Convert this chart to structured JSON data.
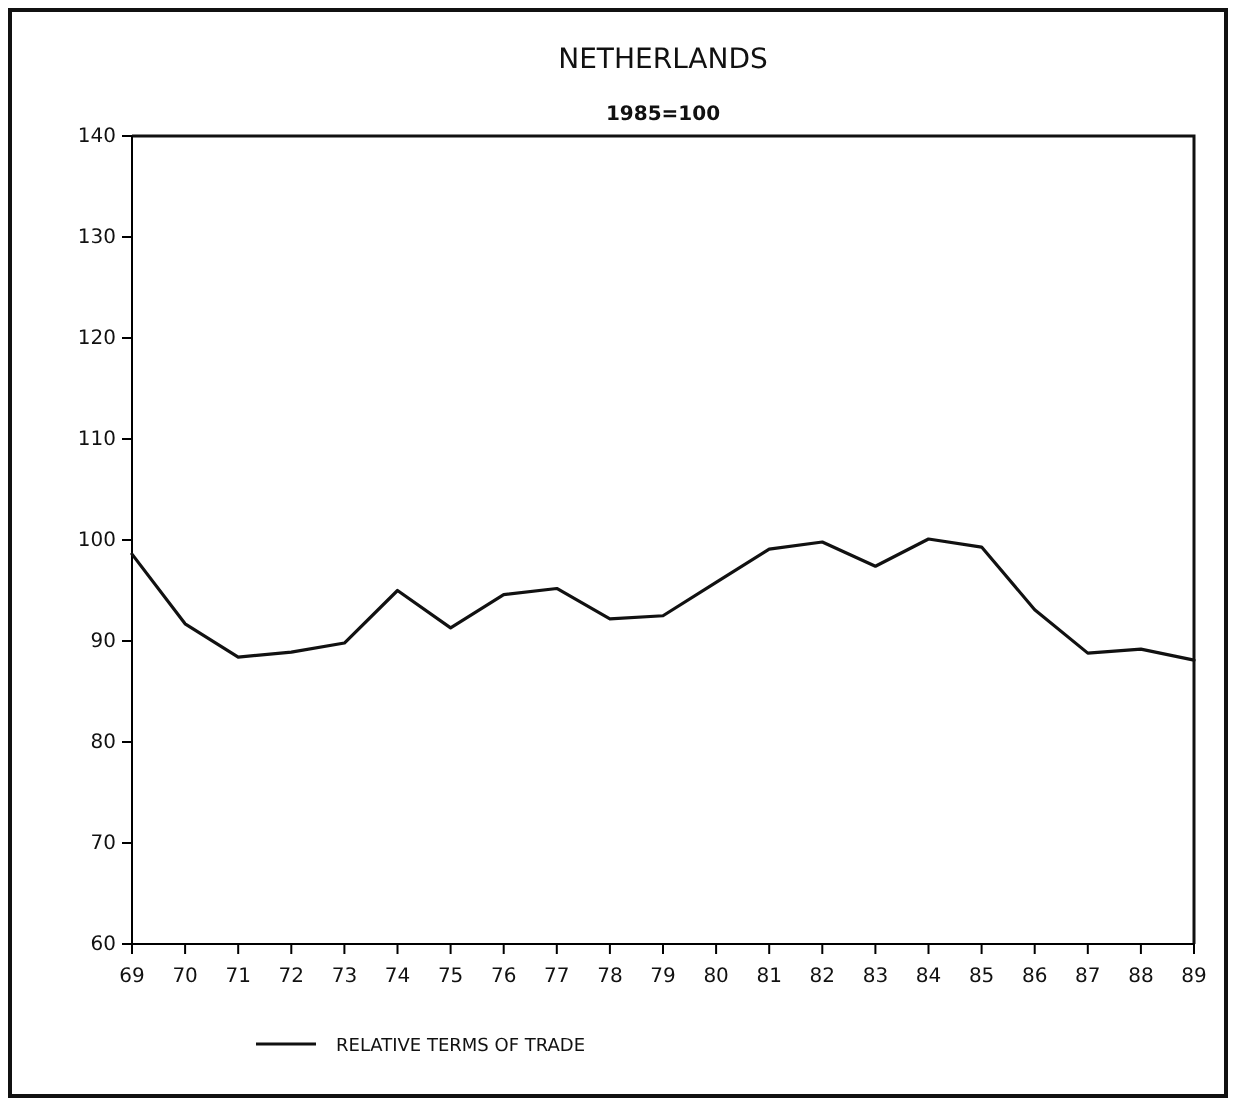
{
  "chart_data": {
    "type": "line",
    "title": "NETHERLANDS",
    "subtitle": "1985=100",
    "categories": [
      "69",
      "70",
      "71",
      "72",
      "73",
      "74",
      "75",
      "76",
      "77",
      "78",
      "79",
      "80",
      "81",
      "82",
      "83",
      "84",
      "85",
      "86",
      "87",
      "88",
      "89"
    ],
    "series": [
      {
        "name": "RELATIVE TERMS OF TRADE",
        "color": "#111111",
        "values": [
          98.6,
          91.7,
          88.4,
          88.9,
          89.8,
          95.0,
          91.3,
          94.6,
          95.2,
          92.2,
          92.5,
          95.8,
          99.1,
          99.8,
          97.4,
          100.1,
          99.3,
          93.1,
          88.8,
          89.2,
          88.1
        ]
      }
    ],
    "ylim": [
      60,
      140
    ],
    "yticks": [
      60,
      70,
      80,
      90,
      100,
      110,
      120,
      130,
      140
    ],
    "grid": false,
    "legend": "bottom",
    "marker": "none",
    "line_style": "solid"
  }
}
